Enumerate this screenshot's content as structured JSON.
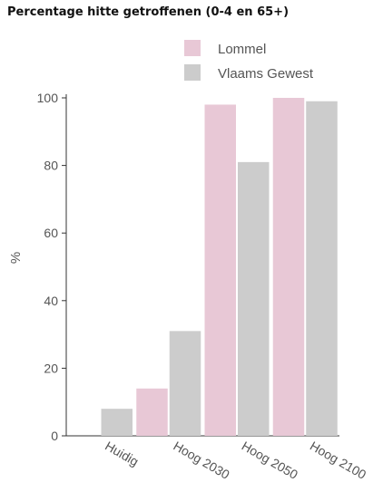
{
  "chart_data": {
    "type": "bar",
    "title": "Percentage hitte getroffenen (0-4 en 65+)",
    "ylabel": "%",
    "xlabel": "",
    "categories": [
      "Huidig",
      "Hoog 2030",
      "Hoog 2050",
      "Hoog 2100"
    ],
    "series": [
      {
        "name": "Lommel",
        "values": [
          0,
          14,
          98,
          100
        ],
        "color": "#e8c8d6"
      },
      {
        "name": "Vlaams Gewest",
        "values": [
          8,
          31,
          81,
          99
        ],
        "color": "#cccccc"
      }
    ],
    "ylim": [
      0,
      100
    ],
    "yticks": [
      0,
      20,
      40,
      60,
      80,
      100
    ],
    "grid": false,
    "legend_position": "top-right"
  }
}
